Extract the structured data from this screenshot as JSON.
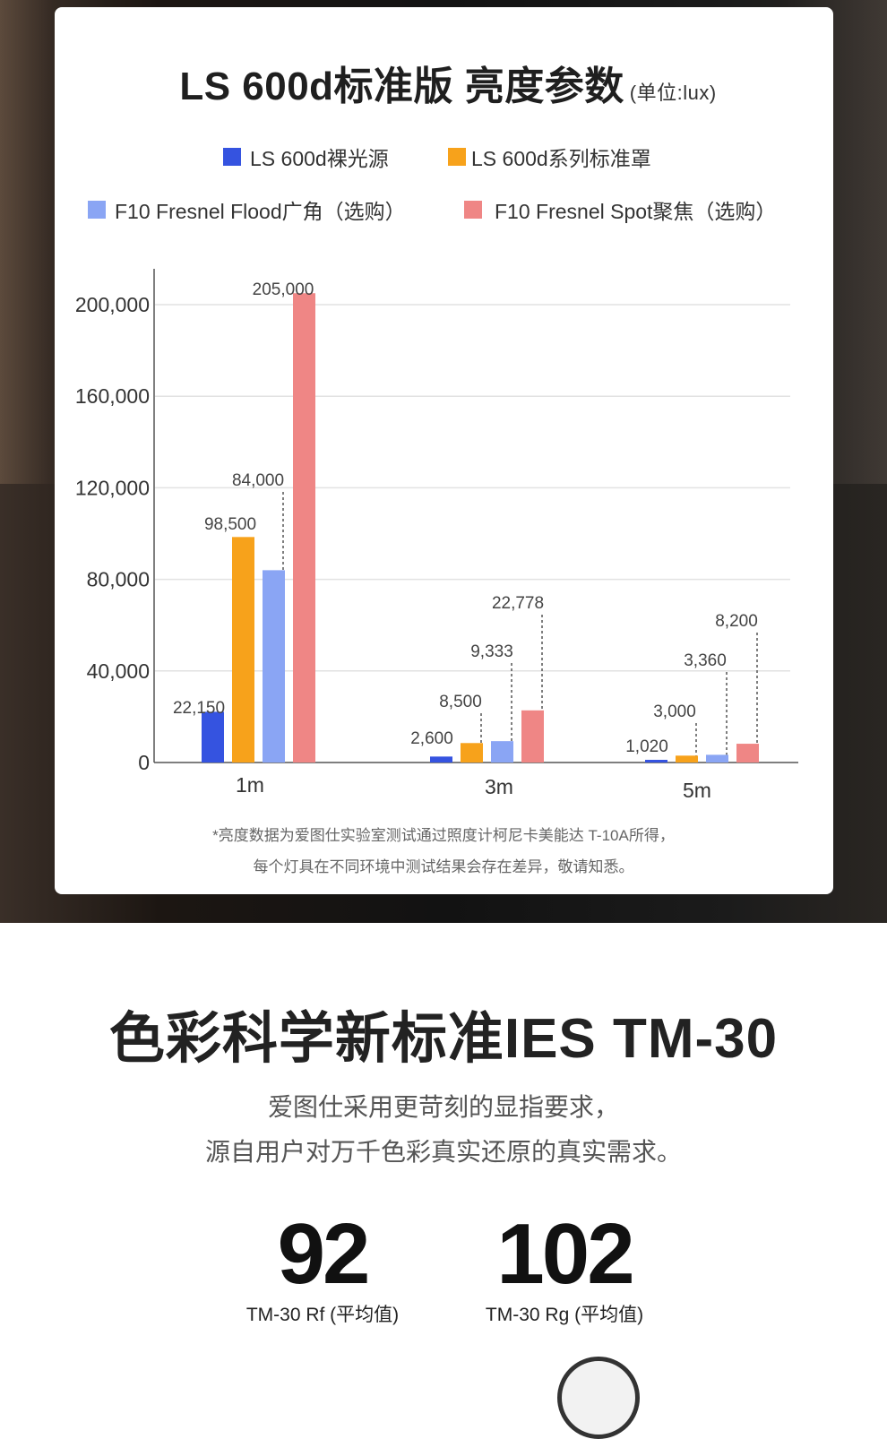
{
  "chart_data": {
    "type": "bar",
    "title": "LS 600d标准版 亮度参数",
    "unit": "(单位:lux)",
    "categories": [
      "1m",
      "3m",
      "5m"
    ],
    "series": [
      {
        "name": "LS 600d裸光源",
        "color": "#3553e0",
        "values": [
          22150,
          2600,
          1020
        ],
        "labels": [
          "22,150",
          "2,600",
          "1,020"
        ]
      },
      {
        "name": "LS 600d系列标准罩",
        "color": "#f7a21b",
        "values": [
          98500,
          8500,
          3000
        ],
        "labels": [
          "98,500",
          "8,500",
          "3,000"
        ]
      },
      {
        "name": "F10 Fresnel Flood广角（选购）",
        "color": "#8aa5f4",
        "values": [
          84000,
          9333,
          3360
        ],
        "labels": [
          "84,000",
          "9,333",
          "3,360"
        ]
      },
      {
        "name": "F10 Fresnel Spot聚焦（选购）",
        "color": "#ef8685",
        "values": [
          205000,
          22778,
          8200
        ],
        "labels": [
          "205,000",
          "22,778",
          "8,200"
        ]
      }
    ],
    "yticks": [
      0,
      40000,
      80000,
      120000,
      160000,
      200000
    ],
    "ytick_labels": [
      "0",
      "40,000",
      "80,000",
      "120,000",
      "160,000",
      "200,000"
    ],
    "ylim": [
      0,
      205000
    ],
    "grid": true,
    "legend_position": "top"
  },
  "footnote": {
    "line1": "*亮度数据为爱图仕实验室测试通过照度计柯尼卡美能达 T-10A所得，",
    "line2": "每个灯具在不同环境中测试结果会存在差异，敬请知悉。"
  },
  "section": {
    "title": "色彩科学新标准IES TM-30",
    "line1": "爱图仕采用更苛刻的显指要求，",
    "line2": "源自用户对万千色彩真实还原的真实需求。"
  },
  "stats": [
    {
      "value": "92",
      "label": "TM-30 Rf (平均值)"
    },
    {
      "value": "102",
      "label": "TM-30 Rg (平均值)"
    }
  ]
}
